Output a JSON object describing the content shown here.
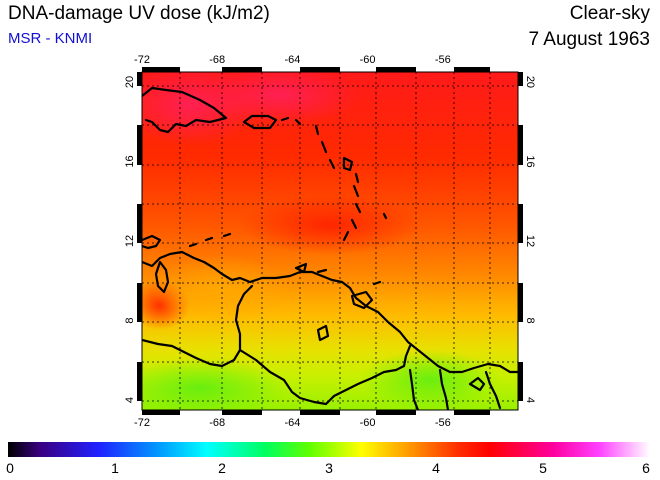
{
  "header": {
    "title": "DNA-damage UV dose (kJ/m2)",
    "subtitle": "MSR - KNMI",
    "condition": "Clear-sky",
    "date": "7 August 1963"
  },
  "map": {
    "lon_ticks": [
      -72,
      -68,
      -64,
      -60,
      -56
    ],
    "lat_ticks": [
      4,
      8,
      12,
      16,
      20
    ],
    "lon_range": [
      -72,
      -52
    ],
    "lat_range": [
      3.5,
      20.5
    ],
    "grid_lines": true,
    "land_outline_color": "#000000",
    "grid_color": "#000000"
  },
  "colorbar": {
    "ticks": [
      "0",
      "1",
      "2",
      "3",
      "4",
      "5",
      "6"
    ],
    "range": [
      0,
      6
    ]
  }
}
